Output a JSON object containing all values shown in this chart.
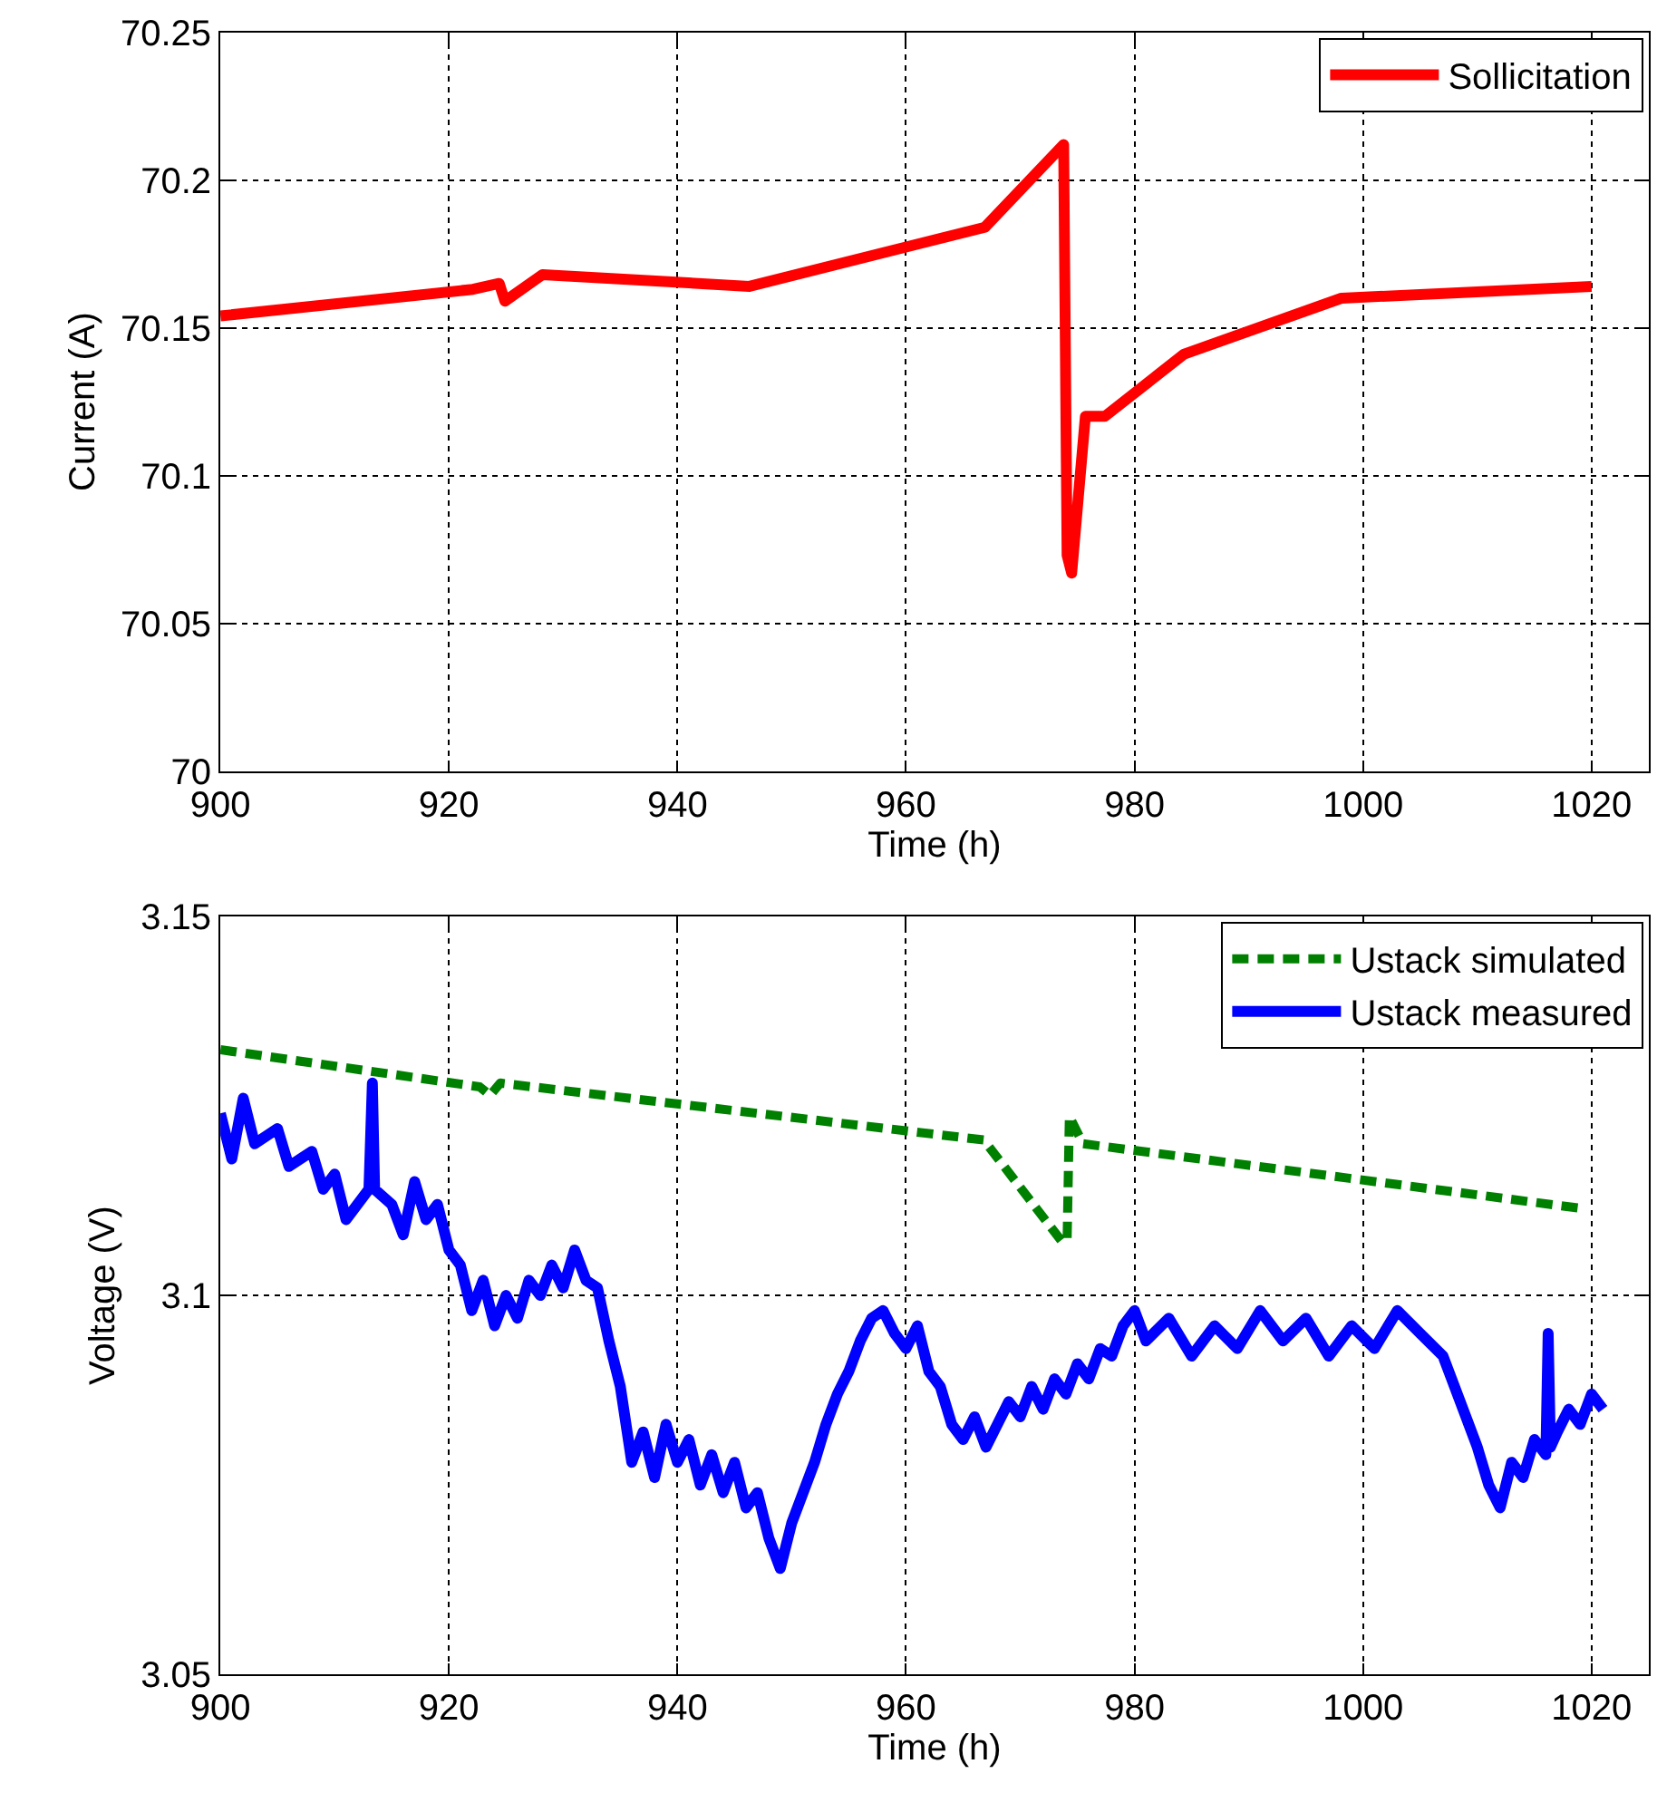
{
  "chart_data": [
    {
      "type": "line",
      "xlabel": "Time (h)",
      "ylabel": "Current (A)",
      "xlim": [
        900,
        1025
      ],
      "xticks": [
        900,
        920,
        940,
        960,
        980,
        1000,
        1020
      ],
      "ylim": [
        70,
        70.25
      ],
      "yticks": [
        70,
        70.05,
        70.1,
        70.15,
        70.2,
        70.25
      ],
      "grid": true,
      "legend": "top right",
      "line_style": "solid",
      "series": [
        {
          "name": "Sollicitation",
          "color": "#ff0000",
          "x": [
            900,
            922.1,
            924.4,
            924.9,
            928.2,
            946.3,
            966.9,
            973.8,
            974.1,
            974.5,
            975.7,
            977.4,
            984.3,
            998.1,
            1020
          ],
          "values": [
            70.154,
            70.163,
            70.165,
            70.159,
            70.168,
            70.164,
            70.184,
            70.212,
            70.073,
            70.067,
            70.12,
            70.12,
            70.141,
            70.16,
            70.164
          ]
        }
      ]
    },
    {
      "type": "line",
      "xlabel": "Time (h)",
      "ylabel": "Voltage (V)",
      "xlim": [
        900,
        1025
      ],
      "xticks": [
        900,
        920,
        940,
        960,
        980,
        1000,
        1020
      ],
      "ylim": [
        3.05,
        3.15
      ],
      "yticks": [
        3.05,
        3.1,
        3.15
      ],
      "grid": true,
      "legend": "top right",
      "series": [
        {
          "name": "Ustack simulated",
          "color": "#008000",
          "line_style": "dashed",
          "x": [
            900,
            922.7,
            923.6,
            924.5,
            966.8,
            973.6,
            974.1,
            974.3,
            975.5,
            1019.5
          ],
          "values": [
            3.1324,
            3.1275,
            3.1264,
            3.128,
            3.1205,
            3.1072,
            3.1072,
            3.1236,
            3.12,
            3.1114
          ]
        },
        {
          "name": "Ustack measured",
          "color": "#0000ff",
          "line_style": "solid",
          "x": [
            900,
            901,
            902,
            903,
            905,
            906,
            908,
            909,
            910,
            911,
            913,
            913.3,
            913.5,
            915,
            916,
            917,
            918,
            919,
            920,
            921,
            922,
            923,
            924,
            925,
            926,
            927,
            928,
            929,
            930,
            931,
            932,
            933,
            934,
            935,
            936,
            937,
            938,
            939,
            940,
            941,
            942,
            943,
            944,
            945,
            946,
            947,
            948,
            949,
            950,
            951,
            952,
            953,
            954,
            955,
            956,
            957,
            958,
            959,
            960,
            961,
            962,
            963,
            964,
            965,
            966,
            967,
            968,
            969,
            970,
            971,
            972,
            973,
            974,
            975,
            976,
            977,
            978,
            979,
            980,
            981,
            983,
            985,
            987,
            989,
            991,
            993,
            995,
            997,
            999,
            1001,
            1003,
            1005,
            1007,
            1009,
            1010,
            1011,
            1012,
            1013,
            1014,
            1015,
            1016,
            1016.2,
            1016.4,
            1017,
            1018,
            1019,
            1020,
            1021
          ],
          "values": [
            3.124,
            3.118,
            3.126,
            3.12,
            3.122,
            3.117,
            3.119,
            3.114,
            3.116,
            3.11,
            3.114,
            3.128,
            3.114,
            3.112,
            3.108,
            3.115,
            3.11,
            3.112,
            3.106,
            3.104,
            3.098,
            3.102,
            3.096,
            3.1,
            3.097,
            3.102,
            3.1,
            3.104,
            3.101,
            3.106,
            3.102,
            3.101,
            3.094,
            3.088,
            3.078,
            3.082,
            3.076,
            3.083,
            3.078,
            3.081,
            3.075,
            3.079,
            3.074,
            3.078,
            3.072,
            3.074,
            3.068,
            3.064,
            3.07,
            3.074,
            3.078,
            3.083,
            3.087,
            3.09,
            3.094,
            3.097,
            3.098,
            3.095,
            3.093,
            3.096,
            3.09,
            3.088,
            3.083,
            3.081,
            3.084,
            3.08,
            3.083,
            3.086,
            3.084,
            3.088,
            3.085,
            3.089,
            3.087,
            3.091,
            3.089,
            3.093,
            3.092,
            3.096,
            3.098,
            3.094,
            3.097,
            3.092,
            3.096,
            3.093,
            3.098,
            3.094,
            3.097,
            3.092,
            3.096,
            3.093,
            3.098,
            3.095,
            3.092,
            3.084,
            3.08,
            3.075,
            3.072,
            3.078,
            3.076,
            3.081,
            3.079,
            3.095,
            3.08,
            3.082,
            3.085,
            3.083,
            3.087,
            3.085
          ]
        }
      ]
    }
  ]
}
